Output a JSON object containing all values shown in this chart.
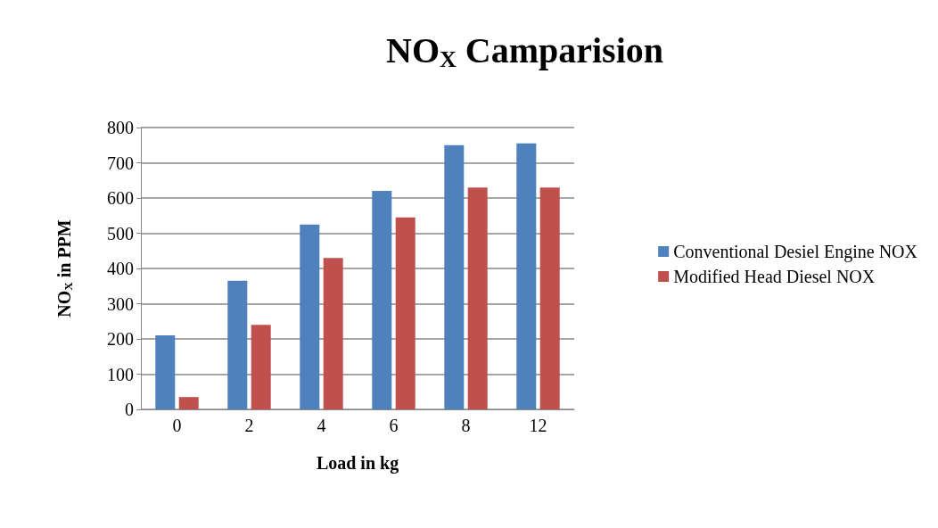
{
  "chart_data": {
    "type": "bar",
    "title": "NO$_{X}$ Camparision",
    "xlabel": "Load in kg",
    "ylabel": "NO$_{X}$ in PPM",
    "categories": [
      "0",
      "2",
      "4",
      "6",
      "8",
      "12"
    ],
    "series": [
      {
        "name": "Conventional Desiel Engine NOX",
        "color": "#4f81bd",
        "values": [
          210,
          365,
          525,
          620,
          750,
          755
        ]
      },
      {
        "name": "Modified Head Diesel NOX",
        "color": "#c0504d",
        "values": [
          35,
          240,
          430,
          545,
          630,
          630
        ]
      }
    ],
    "ylim": [
      0,
      800
    ],
    "yticks": [
      0,
      100,
      200,
      300,
      400,
      500,
      600,
      700,
      800
    ],
    "grid": "y",
    "legend": "right"
  }
}
